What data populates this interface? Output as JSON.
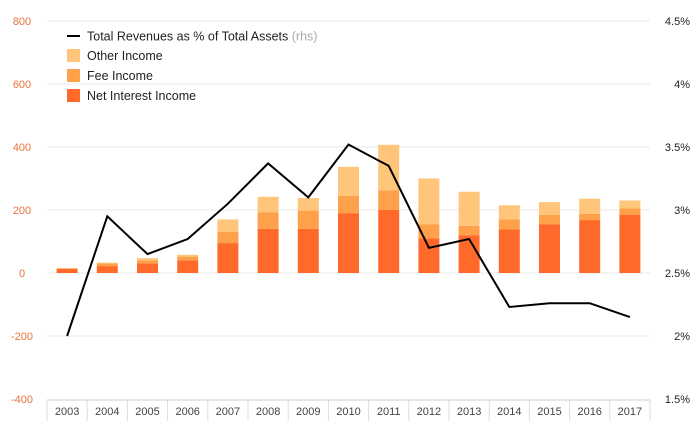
{
  "chart_data": {
    "type": "bar",
    "stacked": true,
    "categories": [
      "2003",
      "2004",
      "2005",
      "2006",
      "2007",
      "2008",
      "2009",
      "2010",
      "2011",
      "2012",
      "2013",
      "2014",
      "2015",
      "2016",
      "2017"
    ],
    "series": [
      {
        "name": "Net Interest Income",
        "color": "#ff6a2b",
        "values": [
          13,
          22,
          30,
          40,
          95,
          140,
          140,
          190,
          200,
          110,
          120,
          138,
          155,
          168,
          185
        ]
      },
      {
        "name": "Fee Income",
        "color": "#ffa04a",
        "values": [
          2,
          8,
          10,
          12,
          35,
          52,
          58,
          55,
          62,
          45,
          30,
          32,
          30,
          20,
          20
        ]
      },
      {
        "name": "Other Income",
        "color": "#ffc57a",
        "values": [
          0,
          3,
          7,
          6,
          40,
          50,
          40,
          92,
          145,
          145,
          108,
          45,
          40,
          48,
          25
        ]
      }
    ],
    "line_series": {
      "name": "Total Revenues as % of Total Assets",
      "suffix": "(rhs)",
      "color": "#000000",
      "values": [
        2.0,
        2.95,
        2.65,
        2.77,
        3.05,
        3.37,
        3.1,
        3.52,
        3.35,
        2.7,
        2.77,
        2.23,
        2.26,
        2.26,
        2.15
      ]
    },
    "ylim_left": [
      -400,
      800
    ],
    "yticks_left": [
      "-400",
      "-200",
      "0",
      "200",
      "400",
      "600",
      "800"
    ],
    "ylim_right": [
      1.5,
      4.5
    ],
    "yticks_right": [
      "1.5%",
      "2%",
      "2.5%",
      "3%",
      "3.5%",
      "4%",
      "4.5%"
    ],
    "legend_position": "top-left",
    "gridlines": true
  }
}
